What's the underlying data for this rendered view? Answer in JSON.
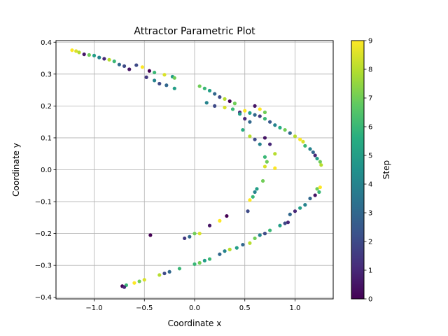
{
  "chart_data": {
    "type": "scatter",
    "title": "Attractor Parametric Plot",
    "xlabel": "Coordinate x",
    "ylabel": "Coordinate y",
    "xlim": [
      -1.38,
      1.38
    ],
    "ylim": [
      -0.405,
      0.405
    ],
    "xticks": [
      -1.0,
      -0.5,
      0.0,
      0.5,
      1.0
    ],
    "xtick_labels": [
      "−1.0",
      "−0.5",
      "0.0",
      "0.5",
      "1.0"
    ],
    "yticks": [
      -0.4,
      -0.3,
      -0.2,
      -0.1,
      0.0,
      0.1,
      0.2,
      0.3,
      0.4
    ],
    "ytick_labels": [
      "−0.4",
      "−0.3",
      "−0.2",
      "−0.1",
      "0.0",
      "0.1",
      "0.2",
      "0.3",
      "0.4"
    ],
    "grid": true,
    "colormap": "viridis",
    "colorbar": {
      "label": "Step",
      "range": [
        0,
        9
      ],
      "ticks": [
        0,
        1,
        2,
        3,
        4,
        5,
        6,
        7,
        8,
        9
      ],
      "tick_labels": [
        "0",
        "1",
        "2",
        "3",
        "4",
        "5",
        "6",
        "7",
        "8",
        "9"
      ]
    },
    "points": [
      {
        "x": -1.22,
        "y": 0.375,
        "c": 9
      },
      {
        "x": -1.18,
        "y": 0.372,
        "c": 8.5
      },
      {
        "x": -1.15,
        "y": 0.368,
        "c": 8
      },
      {
        "x": -1.1,
        "y": 0.362,
        "c": 0.5
      },
      {
        "x": -1.05,
        "y": 0.36,
        "c": 7
      },
      {
        "x": -1.0,
        "y": 0.358,
        "c": 5
      },
      {
        "x": -0.95,
        "y": 0.352,
        "c": 4
      },
      {
        "x": -0.9,
        "y": 0.348,
        "c": 1
      },
      {
        "x": -0.85,
        "y": 0.345,
        "c": 8
      },
      {
        "x": -0.8,
        "y": 0.34,
        "c": 6
      },
      {
        "x": -0.75,
        "y": 0.33,
        "c": 3
      },
      {
        "x": -0.7,
        "y": 0.325,
        "c": 2
      },
      {
        "x": -0.65,
        "y": 0.315,
        "c": 0.5
      },
      {
        "x": -0.58,
        "y": 0.328,
        "c": 2
      },
      {
        "x": -0.52,
        "y": 0.322,
        "c": 9
      },
      {
        "x": -0.45,
        "y": 0.31,
        "c": 0
      },
      {
        "x": -0.4,
        "y": 0.305,
        "c": 6
      },
      {
        "x": -0.3,
        "y": 0.298,
        "c": 8.5
      },
      {
        "x": -0.22,
        "y": 0.292,
        "c": 5
      },
      {
        "x": -0.2,
        "y": 0.288,
        "c": 7
      },
      {
        "x": -0.48,
        "y": 0.29,
        "c": 1.5
      },
      {
        "x": -0.4,
        "y": 0.28,
        "c": 4
      },
      {
        "x": -0.35,
        "y": 0.27,
        "c": 2
      },
      {
        "x": -0.28,
        "y": 0.265,
        "c": 3
      },
      {
        "x": -0.2,
        "y": 0.255,
        "c": 5
      },
      {
        "x": 0.05,
        "y": 0.262,
        "c": 7
      },
      {
        "x": 0.1,
        "y": 0.255,
        "c": 6
      },
      {
        "x": 0.15,
        "y": 0.248,
        "c": 5
      },
      {
        "x": 0.2,
        "y": 0.238,
        "c": 3
      },
      {
        "x": 0.25,
        "y": 0.228,
        "c": 2
      },
      {
        "x": 0.3,
        "y": 0.222,
        "c": 8
      },
      {
        "x": 0.35,
        "y": 0.215,
        "c": 0
      },
      {
        "x": 0.4,
        "y": 0.208,
        "c": 7
      },
      {
        "x": 0.45,
        "y": 0.18,
        "c": 1
      },
      {
        "x": 0.5,
        "y": 0.185,
        "c": 9
      },
      {
        "x": 0.55,
        "y": 0.178,
        "c": 5
      },
      {
        "x": 0.6,
        "y": 0.172,
        "c": 3
      },
      {
        "x": 0.65,
        "y": 0.168,
        "c": 1.5
      },
      {
        "x": 0.7,
        "y": 0.16,
        "c": 6
      },
      {
        "x": 0.75,
        "y": 0.15,
        "c": 2.5
      },
      {
        "x": 0.8,
        "y": 0.14,
        "c": 4
      },
      {
        "x": 0.85,
        "y": 0.132,
        "c": 5.5
      },
      {
        "x": 0.9,
        "y": 0.125,
        "c": 7
      },
      {
        "x": 0.95,
        "y": 0.115,
        "c": 3
      },
      {
        "x": 1.0,
        "y": 0.105,
        "c": 8
      },
      {
        "x": 1.05,
        "y": 0.095,
        "c": 9
      },
      {
        "x": 1.08,
        "y": 0.088,
        "c": 8.5
      },
      {
        "x": 1.1,
        "y": 0.075,
        "c": 6
      },
      {
        "x": 1.15,
        "y": 0.065,
        "c": 4
      },
      {
        "x": 1.18,
        "y": 0.055,
        "c": 3
      },
      {
        "x": 1.2,
        "y": 0.045,
        "c": 1
      },
      {
        "x": 1.22,
        "y": 0.035,
        "c": 5
      },
      {
        "x": 1.25,
        "y": 0.025,
        "c": 7
      },
      {
        "x": 1.26,
        "y": 0.015,
        "c": 8
      },
      {
        "x": 0.12,
        "y": 0.21,
        "c": 4
      },
      {
        "x": 0.2,
        "y": 0.2,
        "c": 2
      },
      {
        "x": 0.3,
        "y": 0.195,
        "c": 8.5
      },
      {
        "x": 0.38,
        "y": 0.19,
        "c": 6
      },
      {
        "x": 0.45,
        "y": 0.175,
        "c": 5
      },
      {
        "x": 0.5,
        "y": 0.16,
        "c": 1
      },
      {
        "x": 0.55,
        "y": 0.15,
        "c": 3
      },
      {
        "x": 0.6,
        "y": 0.2,
        "c": 0.5
      },
      {
        "x": 0.65,
        "y": 0.19,
        "c": 9
      },
      {
        "x": 0.7,
        "y": 0.18,
        "c": 7
      },
      {
        "x": 0.48,
        "y": 0.125,
        "c": 5.5
      },
      {
        "x": 0.55,
        "y": 0.105,
        "c": 8
      },
      {
        "x": 0.6,
        "y": 0.095,
        "c": 2
      },
      {
        "x": 0.65,
        "y": 0.08,
        "c": 4
      },
      {
        "x": 0.7,
        "y": 0.1,
        "c": 0.5
      },
      {
        "x": 0.75,
        "y": 0.08,
        "c": 1
      },
      {
        "x": 0.8,
        "y": 0.05,
        "c": 8
      },
      {
        "x": 0.7,
        "y": 0.04,
        "c": 6
      },
      {
        "x": 0.72,
        "y": 0.025,
        "c": 7
      },
      {
        "x": 0.7,
        "y": 0.01,
        "c": 8.5
      },
      {
        "x": 0.8,
        "y": 0.005,
        "c": 9
      },
      {
        "x": 0.68,
        "y": -0.035,
        "c": 7
      },
      {
        "x": 0.62,
        "y": -0.06,
        "c": 5
      },
      {
        "x": 0.6,
        "y": -0.07,
        "c": 4
      },
      {
        "x": 0.58,
        "y": -0.085,
        "c": 6
      },
      {
        "x": 0.55,
        "y": -0.095,
        "c": 9
      },
      {
        "x": 0.53,
        "y": -0.13,
        "c": 2
      },
      {
        "x": 0.95,
        "y": -0.14,
        "c": 3
      },
      {
        "x": 1.0,
        "y": -0.13,
        "c": 1
      },
      {
        "x": 1.05,
        "y": -0.12,
        "c": 5
      },
      {
        "x": 1.1,
        "y": -0.11,
        "c": 4
      },
      {
        "x": 1.15,
        "y": -0.09,
        "c": 3
      },
      {
        "x": 1.2,
        "y": -0.08,
        "c": 0.5
      },
      {
        "x": 1.22,
        "y": -0.06,
        "c": 7
      },
      {
        "x": 1.25,
        "y": -0.055,
        "c": 9
      },
      {
        "x": 1.24,
        "y": -0.07,
        "c": 6
      },
      {
        "x": 0.93,
        "y": -0.165,
        "c": 1
      },
      {
        "x": 0.9,
        "y": -0.168,
        "c": 2
      },
      {
        "x": 0.85,
        "y": -0.175,
        "c": 5
      },
      {
        "x": 0.75,
        "y": -0.19,
        "c": 6
      },
      {
        "x": 0.7,
        "y": -0.2,
        "c": 2
      },
      {
        "x": 0.65,
        "y": -0.205,
        "c": 4
      },
      {
        "x": 0.6,
        "y": -0.215,
        "c": 7
      },
      {
        "x": 0.55,
        "y": -0.23,
        "c": 8
      },
      {
        "x": 0.48,
        "y": -0.235,
        "c": 3
      },
      {
        "x": 0.42,
        "y": -0.245,
        "c": 5
      },
      {
        "x": 0.35,
        "y": -0.25,
        "c": 8
      },
      {
        "x": 0.3,
        "y": -0.255,
        "c": 4
      },
      {
        "x": 0.25,
        "y": -0.265,
        "c": 3
      },
      {
        "x": 0.15,
        "y": -0.28,
        "c": 6
      },
      {
        "x": 0.1,
        "y": -0.285,
        "c": 5
      },
      {
        "x": 0.05,
        "y": -0.292,
        "c": 7
      },
      {
        "x": 0.0,
        "y": -0.296,
        "c": 6
      },
      {
        "x": -0.15,
        "y": -0.31,
        "c": 6
      },
      {
        "x": -0.25,
        "y": -0.32,
        "c": 3
      },
      {
        "x": -0.3,
        "y": -0.325,
        "c": 2
      },
      {
        "x": -0.35,
        "y": -0.33,
        "c": 8
      },
      {
        "x": -0.5,
        "y": -0.345,
        "c": 8.5
      },
      {
        "x": -0.55,
        "y": -0.35,
        "c": 7
      },
      {
        "x": -0.6,
        "y": -0.355,
        "c": 9
      },
      {
        "x": -0.68,
        "y": -0.362,
        "c": 6
      },
      {
        "x": -0.72,
        "y": -0.365,
        "c": 0
      },
      {
        "x": -0.7,
        "y": -0.368,
        "c": 1
      },
      {
        "x": 0.0,
        "y": -0.2,
        "c": 7
      },
      {
        "x": 0.05,
        "y": -0.2,
        "c": 8.5
      },
      {
        "x": -0.05,
        "y": -0.21,
        "c": 3
      },
      {
        "x": -0.1,
        "y": -0.215,
        "c": 1.5
      },
      {
        "x": -0.44,
        "y": -0.205,
        "c": 0
      },
      {
        "x": 0.15,
        "y": -0.175,
        "c": 0.5
      },
      {
        "x": 0.25,
        "y": -0.16,
        "c": 9
      },
      {
        "x": 0.32,
        "y": -0.145,
        "c": 0
      }
    ]
  }
}
